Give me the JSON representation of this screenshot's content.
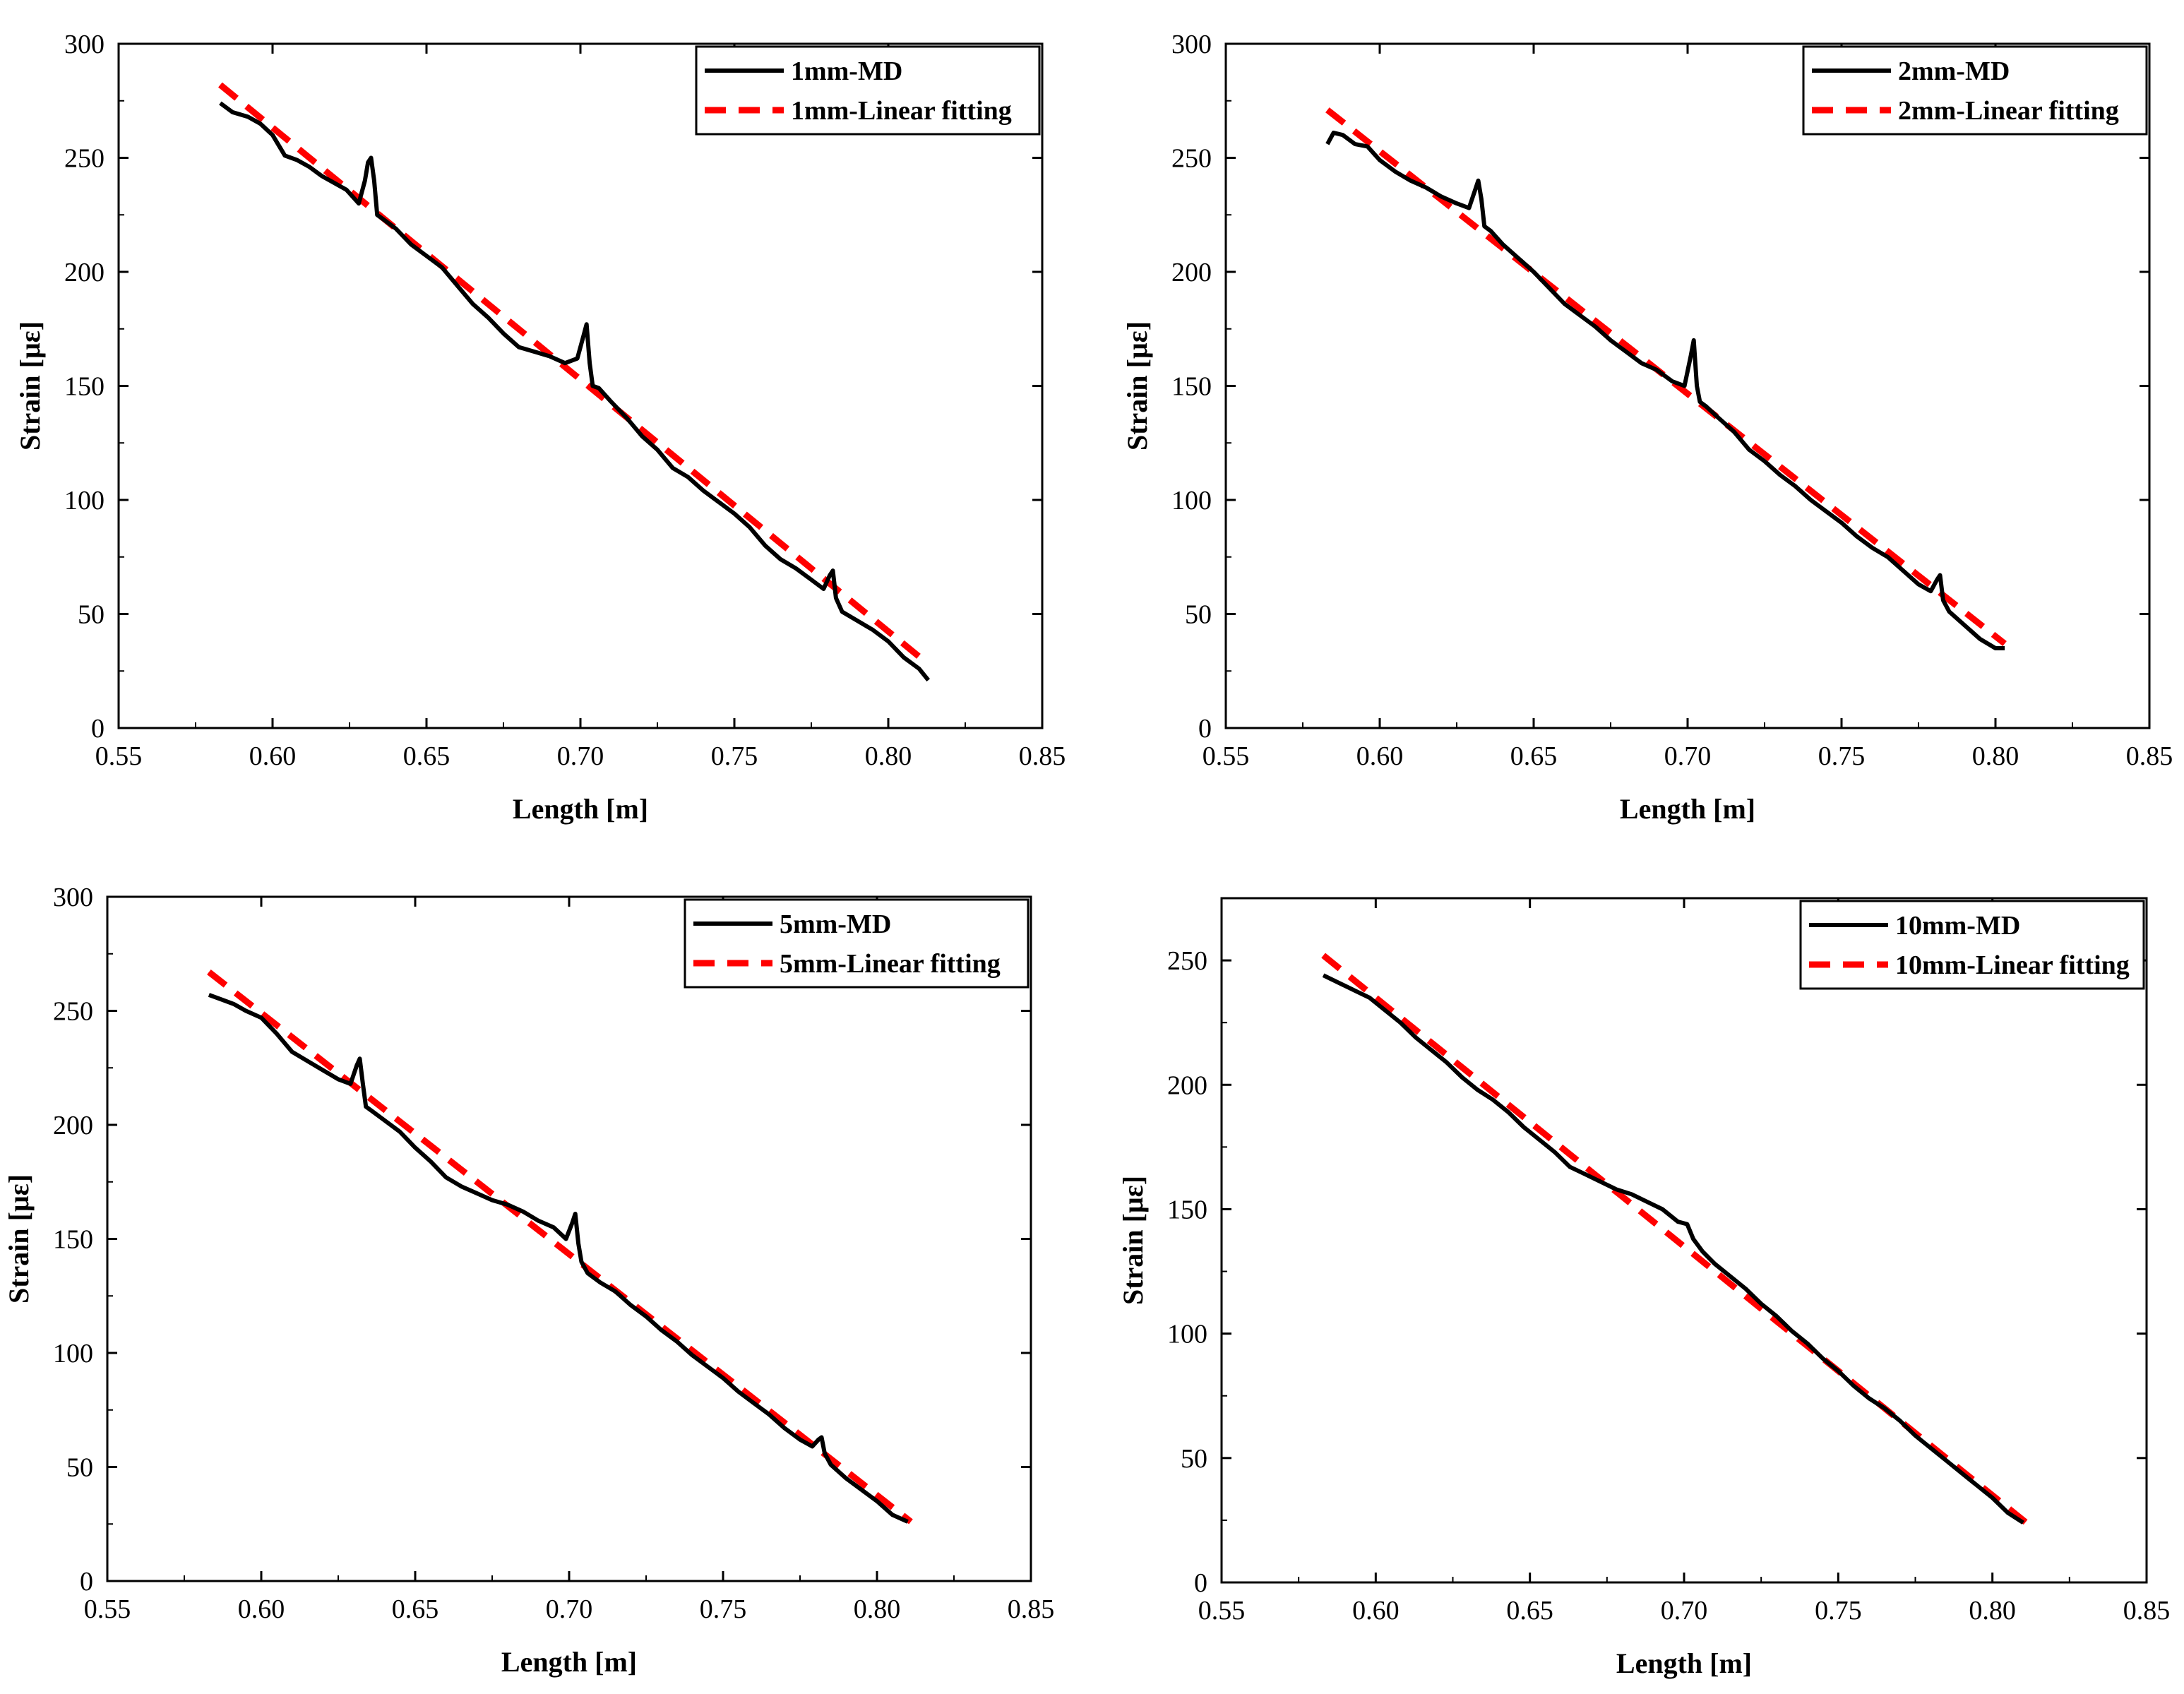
{
  "figure": {
    "panel_count": 4
  },
  "chart_data": [
    {
      "type": "line",
      "panel": "1mm",
      "xlabel": "Length [m]",
      "ylabel": "Strain [με]",
      "xlim": [
        0.55,
        0.85
      ],
      "ylim": [
        0,
        300
      ],
      "xticks": [
        0.55,
        0.6,
        0.65,
        0.7,
        0.75,
        0.8,
        0.85
      ],
      "xtick_labels": [
        "0.55",
        "0.60",
        "0.65",
        "0.70",
        "0.75",
        "0.80",
        "0.85"
      ],
      "yticks": [
        0,
        50,
        100,
        150,
        200,
        250,
        300
      ],
      "ytick_labels": [
        "0",
        "50",
        "100",
        "150",
        "200",
        "250",
        "300"
      ],
      "legend_position": "top-right",
      "series": [
        {
          "name": "1mm-MD",
          "style": "solid",
          "color": "#000000",
          "x": [
            0.583,
            0.587,
            0.592,
            0.596,
            0.6,
            0.604,
            0.608,
            0.612,
            0.616,
            0.62,
            0.624,
            0.628,
            0.63,
            0.631,
            0.632,
            0.633,
            0.634,
            0.636,
            0.64,
            0.645,
            0.65,
            0.655,
            0.66,
            0.665,
            0.67,
            0.675,
            0.68,
            0.685,
            0.69,
            0.695,
            0.699,
            0.701,
            0.702,
            0.703,
            0.704,
            0.706,
            0.71,
            0.715,
            0.72,
            0.725,
            0.73,
            0.735,
            0.74,
            0.745,
            0.75,
            0.755,
            0.76,
            0.765,
            0.77,
            0.775,
            0.779,
            0.781,
            0.782,
            0.783,
            0.785,
            0.79,
            0.795,
            0.8,
            0.805,
            0.81,
            0.813
          ],
          "y": [
            274,
            270,
            268,
            265,
            260,
            251,
            249,
            246,
            242,
            239,
            236,
            230,
            240,
            248,
            250,
            240,
            225,
            223,
            219,
            212,
            207,
            202,
            194,
            186,
            180,
            173,
            167,
            165,
            163,
            160,
            162,
            172,
            177,
            160,
            150,
            149,
            143,
            136,
            128,
            122,
            114,
            110,
            104,
            99,
            94,
            88,
            80,
            74,
            70,
            65,
            61,
            67,
            69,
            57,
            51,
            47,
            43,
            38,
            31,
            26,
            21
          ]
        },
        {
          "name": "1mm-Linear fitting",
          "style": "dashed",
          "color": "#ff0000",
          "x": [
            0.583,
            0.813
          ],
          "y": [
            282,
            28
          ]
        }
      ]
    },
    {
      "type": "line",
      "panel": "2mm",
      "xlabel": "Length [m]",
      "ylabel": "Strain [με]",
      "xlim": [
        0.55,
        0.85
      ],
      "ylim": [
        0,
        300
      ],
      "xticks": [
        0.55,
        0.6,
        0.65,
        0.7,
        0.75,
        0.8,
        0.85
      ],
      "xtick_labels": [
        "0.55",
        "0.60",
        "0.65",
        "0.70",
        "0.75",
        "0.80",
        "0.85"
      ],
      "yticks": [
        0,
        50,
        100,
        150,
        200,
        250,
        300
      ],
      "ytick_labels": [
        "0",
        "50",
        "100",
        "150",
        "200",
        "250",
        "300"
      ],
      "legend_position": "top-right",
      "series": [
        {
          "name": "2mm-MD",
          "style": "solid",
          "color": "#000000",
          "x": [
            0.583,
            0.585,
            0.588,
            0.592,
            0.596,
            0.6,
            0.605,
            0.61,
            0.615,
            0.62,
            0.625,
            0.629,
            0.631,
            0.632,
            0.633,
            0.634,
            0.636,
            0.64,
            0.645,
            0.65,
            0.655,
            0.66,
            0.665,
            0.67,
            0.675,
            0.68,
            0.685,
            0.69,
            0.695,
            0.699,
            0.701,
            0.702,
            0.703,
            0.704,
            0.706,
            0.71,
            0.715,
            0.72,
            0.725,
            0.73,
            0.735,
            0.74,
            0.745,
            0.75,
            0.755,
            0.76,
            0.765,
            0.77,
            0.775,
            0.779,
            0.781,
            0.782,
            0.783,
            0.785,
            0.79,
            0.795,
            0.8,
            0.803
          ],
          "y": [
            256,
            261,
            260,
            256,
            255,
            249,
            244,
            240,
            237,
            233,
            230,
            228,
            236,
            240,
            232,
            220,
            218,
            212,
            206,
            200,
            193,
            186,
            181,
            176,
            170,
            165,
            160,
            157,
            152,
            150,
            163,
            170,
            150,
            143,
            141,
            136,
            130,
            122,
            117,
            111,
            106,
            100,
            95,
            90,
            84,
            79,
            75,
            69,
            63,
            60,
            65,
            67,
            56,
            51,
            45,
            39,
            35,
            35
          ]
        },
        {
          "name": "2mm-Linear fitting",
          "style": "dashed",
          "color": "#ff0000",
          "x": [
            0.583,
            0.803
          ],
          "y": [
            271,
            37
          ]
        }
      ]
    },
    {
      "type": "line",
      "panel": "5mm",
      "xlabel": "Length [m]",
      "ylabel": "Strain [με]",
      "xlim": [
        0.55,
        0.85
      ],
      "ylim": [
        0,
        300
      ],
      "xticks": [
        0.55,
        0.6,
        0.65,
        0.7,
        0.75,
        0.8,
        0.85
      ],
      "xtick_labels": [
        "0.55",
        "0.60",
        "0.65",
        "0.70",
        "0.75",
        "0.80",
        "0.85"
      ],
      "yticks": [
        0,
        50,
        100,
        150,
        200,
        250,
        300
      ],
      "ytick_labels": [
        "0",
        "50",
        "100",
        "150",
        "200",
        "250",
        "300"
      ],
      "legend_position": "top-right",
      "series": [
        {
          "name": "5mm-MD",
          "style": "solid",
          "color": "#000000",
          "x": [
            0.583,
            0.587,
            0.591,
            0.595,
            0.6,
            0.605,
            0.61,
            0.615,
            0.62,
            0.625,
            0.629,
            0.631,
            0.632,
            0.633,
            0.634,
            0.636,
            0.64,
            0.645,
            0.65,
            0.655,
            0.66,
            0.665,
            0.67,
            0.675,
            0.68,
            0.685,
            0.69,
            0.695,
            0.699,
            0.701,
            0.702,
            0.703,
            0.704,
            0.706,
            0.71,
            0.715,
            0.72,
            0.725,
            0.73,
            0.735,
            0.74,
            0.745,
            0.75,
            0.755,
            0.76,
            0.765,
            0.77,
            0.775,
            0.779,
            0.781,
            0.782,
            0.783,
            0.785,
            0.79,
            0.795,
            0.8,
            0.805,
            0.81
          ],
          "y": [
            257,
            255,
            253,
            250,
            247,
            240,
            232,
            228,
            224,
            220,
            218,
            226,
            229,
            218,
            208,
            206,
            202,
            197,
            190,
            184,
            177,
            173,
            170,
            167,
            165,
            162,
            158,
            155,
            150,
            157,
            161,
            148,
            140,
            135,
            131,
            127,
            121,
            116,
            110,
            105,
            99,
            94,
            89,
            83,
            78,
            73,
            67,
            62,
            59,
            62,
            63,
            56,
            51,
            45,
            40,
            35,
            29,
            26
          ]
        },
        {
          "name": "5mm-Linear fitting",
          "style": "dashed",
          "color": "#ff0000",
          "x": [
            0.583,
            0.811
          ],
          "y": [
            267,
            26
          ]
        }
      ]
    },
    {
      "type": "line",
      "panel": "10mm",
      "xlabel": "Length [m]",
      "ylabel": "Strain [με]",
      "xlim": [
        0.55,
        0.85
      ],
      "ylim": [
        0,
        275
      ],
      "xticks": [
        0.55,
        0.6,
        0.65,
        0.7,
        0.75,
        0.8,
        0.85
      ],
      "xtick_labels": [
        "0.55",
        "0.60",
        "0.65",
        "0.70",
        "0.75",
        "0.80",
        "0.85"
      ],
      "yticks": [
        0,
        50,
        100,
        150,
        200,
        250
      ],
      "ytick_labels": [
        "0",
        "50",
        "100",
        "150",
        "200",
        "250"
      ],
      "legend_position": "top-right",
      "series": [
        {
          "name": "10mm-MD",
          "style": "solid",
          "color": "#000000",
          "x": [
            0.583,
            0.588,
            0.593,
            0.598,
            0.603,
            0.608,
            0.613,
            0.618,
            0.623,
            0.628,
            0.633,
            0.638,
            0.643,
            0.648,
            0.653,
            0.658,
            0.663,
            0.668,
            0.673,
            0.678,
            0.683,
            0.688,
            0.693,
            0.698,
            0.701,
            0.703,
            0.706,
            0.71,
            0.715,
            0.72,
            0.725,
            0.73,
            0.735,
            0.74,
            0.745,
            0.75,
            0.755,
            0.76,
            0.765,
            0.77,
            0.775,
            0.78,
            0.785,
            0.79,
            0.795,
            0.8,
            0.805,
            0.81
          ],
          "y": [
            244,
            241,
            238,
            235,
            230,
            225,
            219,
            214,
            209,
            203,
            198,
            194,
            189,
            183,
            178,
            173,
            167,
            164,
            161,
            158,
            156,
            153,
            150,
            145,
            144,
            138,
            133,
            128,
            123,
            118,
            112,
            107,
            101,
            96,
            90,
            85,
            79,
            74,
            70,
            65,
            59,
            54,
            49,
            44,
            39,
            34,
            28,
            24
          ]
        },
        {
          "name": "10mm-Linear fitting",
          "style": "dashed",
          "color": "#ff0000",
          "x": [
            0.583,
            0.811
          ],
          "y": [
            252,
            24
          ]
        }
      ]
    }
  ]
}
